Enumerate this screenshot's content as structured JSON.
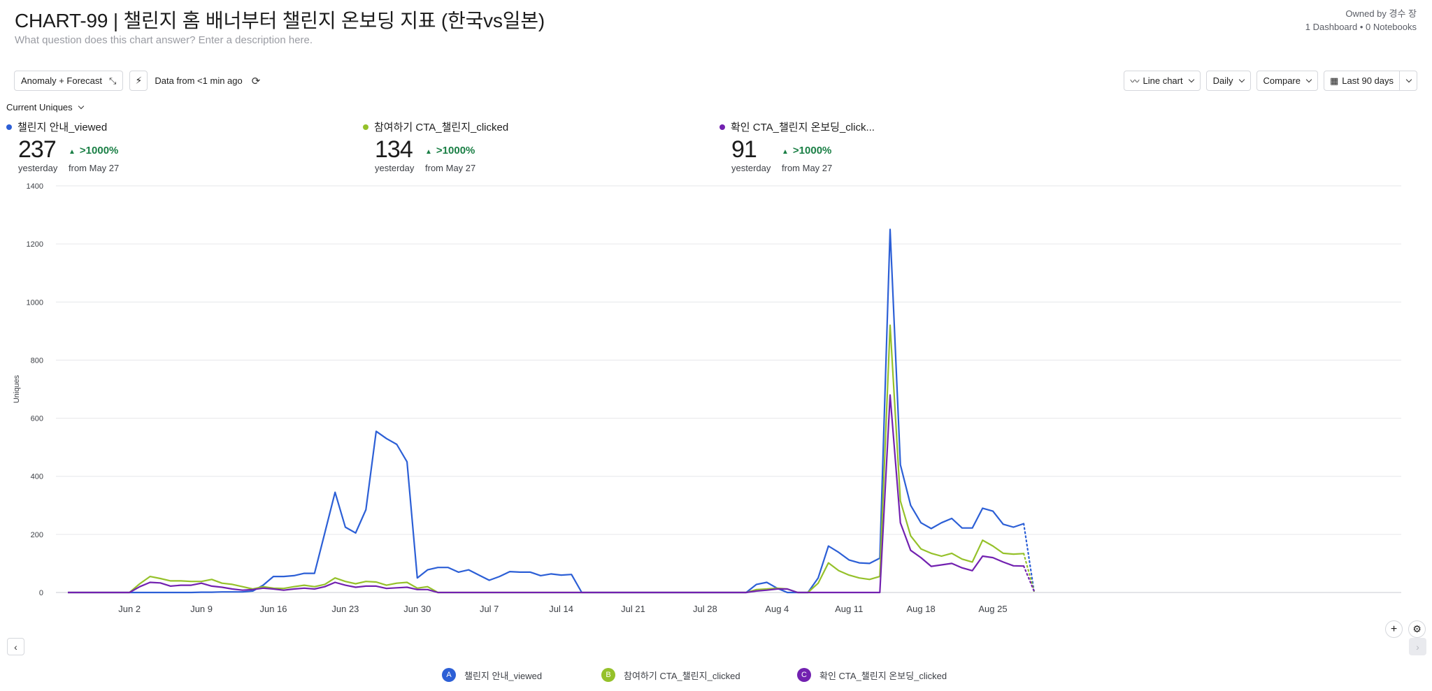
{
  "header": {
    "title": "CHART-99 | 챌린지 홈 배너부터 챌린지 온보딩 지표 (한국vs일본)",
    "description_placeholder": "What question does this chart answer? Enter a description here.",
    "owner": "Owned by 경수 장",
    "links": "1 Dashboard • 0 Notebooks"
  },
  "toolbar": {
    "anomaly_label": "Anomaly + Forecast",
    "data_from": "Data from <1 min ago",
    "chart_type": "Line chart",
    "interval": "Daily",
    "compare": "Compare",
    "range": "Last 90 days"
  },
  "metric_select": "Current Uniques",
  "kpis": [
    {
      "name": "챌린지 안내_viewed",
      "value": "237",
      "change": ">1000%",
      "period": "yesterday",
      "from": "from May 27",
      "color": "#2c5fd6"
    },
    {
      "name": "참여하기 CTA_챌린지_clicked",
      "value": "134",
      "change": ">1000%",
      "period": "yesterday",
      "from": "from May 27",
      "color": "#95c12a"
    },
    {
      "name": "확인 CTA_챌린지 온보딩_click...",
      "value": "91",
      "change": ">1000%",
      "period": "yesterday",
      "from": "from May 27",
      "color": "#7221b0"
    }
  ],
  "legend": [
    {
      "letter": "A",
      "label": "챌린지 안내_viewed",
      "color": "#2c5fd6"
    },
    {
      "letter": "B",
      "label": "참여하기 CTA_챌린지_clicked",
      "color": "#95c12a"
    },
    {
      "letter": "C",
      "label": "확인 CTA_챌린지 온보딩_clicked",
      "color": "#7221b0"
    }
  ],
  "chart_data": {
    "type": "line",
    "title": "",
    "ylabel": "Uniques",
    "xlabel": "",
    "ylim": [
      0,
      1400
    ],
    "yticks": [
      0,
      200,
      400,
      600,
      800,
      1000,
      1200,
      1400
    ],
    "grid": true,
    "start_date": "May 27",
    "x_tick_labels": [
      "Jun 2",
      "Jun 9",
      "Jun 16",
      "Jun 23",
      "Jun 30",
      "Jul 7",
      "Jul 14",
      "Jul 21",
      "Jul 28",
      "Aug 4",
      "Aug 11",
      "Aug 18",
      "Aug 25"
    ],
    "x_tick_day_index": [
      6,
      13,
      20,
      27,
      34,
      41,
      48,
      55,
      62,
      69,
      76,
      83,
      90
    ],
    "incomplete_last_point": true,
    "series": [
      {
        "name": "챌린지 안내_viewed",
        "color": "#2c5fd6",
        "values": [
          0,
          0,
          0,
          0,
          0,
          0,
          0,
          0,
          0,
          0,
          0,
          0,
          0,
          1,
          1,
          2,
          2,
          2,
          5,
          25,
          55,
          55,
          58,
          66,
          66,
          205,
          345,
          225,
          205,
          285,
          555,
          530,
          510,
          450,
          50,
          78,
          86,
          86,
          70,
          78,
          60,
          42,
          55,
          72,
          70,
          70,
          58,
          64,
          60,
          62,
          0,
          0,
          0,
          0,
          0,
          0,
          0,
          0,
          0,
          0,
          0,
          0,
          0,
          0,
          0,
          0,
          0,
          28,
          35,
          15,
          0,
          0,
          0,
          50,
          160,
          138,
          112,
          102,
          100,
          118,
          1250,
          440,
          300,
          240,
          220,
          240,
          255,
          222,
          222,
          290,
          280,
          235,
          225,
          237,
          5
        ]
      },
      {
        "name": "참여하기 CTA_챌린지_clicked",
        "color": "#95c12a",
        "values": [
          0,
          0,
          0,
          0,
          0,
          0,
          0,
          30,
          55,
          48,
          40,
          40,
          38,
          38,
          45,
          32,
          28,
          20,
          12,
          20,
          15,
          14,
          20,
          25,
          20,
          28,
          50,
          38,
          30,
          38,
          36,
          25,
          32,
          35,
          15,
          20,
          0,
          0,
          0,
          0,
          0,
          0,
          0,
          0,
          0,
          0,
          0,
          0,
          0,
          0,
          0,
          0,
          0,
          0,
          0,
          0,
          0,
          0,
          0,
          0,
          0,
          0,
          0,
          0,
          0,
          0,
          0,
          10,
          12,
          15,
          12,
          0,
          0,
          32,
          102,
          75,
          60,
          50,
          45,
          55,
          920,
          315,
          195,
          150,
          135,
          125,
          135,
          115,
          105,
          180,
          160,
          135,
          132,
          134,
          5
        ]
      },
      {
        "name": "확인 CTA_챌린지 온보딩_clicked",
        "color": "#7221b0",
        "values": [
          0,
          0,
          0,
          0,
          0,
          0,
          0,
          20,
          35,
          33,
          22,
          25,
          25,
          32,
          22,
          18,
          12,
          8,
          10,
          15,
          12,
          8,
          12,
          15,
          12,
          20,
          35,
          25,
          18,
          22,
          22,
          14,
          16,
          18,
          10,
          10,
          0,
          0,
          0,
          0,
          0,
          0,
          0,
          0,
          0,
          0,
          0,
          0,
          0,
          0,
          0,
          0,
          0,
          0,
          0,
          0,
          0,
          0,
          0,
          0,
          0,
          0,
          0,
          0,
          0,
          0,
          0,
          5,
          8,
          12,
          12,
          0,
          0,
          0,
          0,
          0,
          0,
          0,
          0,
          0,
          680,
          240,
          145,
          120,
          90,
          95,
          100,
          85,
          75,
          125,
          120,
          105,
          92,
          91,
          5
        ]
      }
    ]
  }
}
